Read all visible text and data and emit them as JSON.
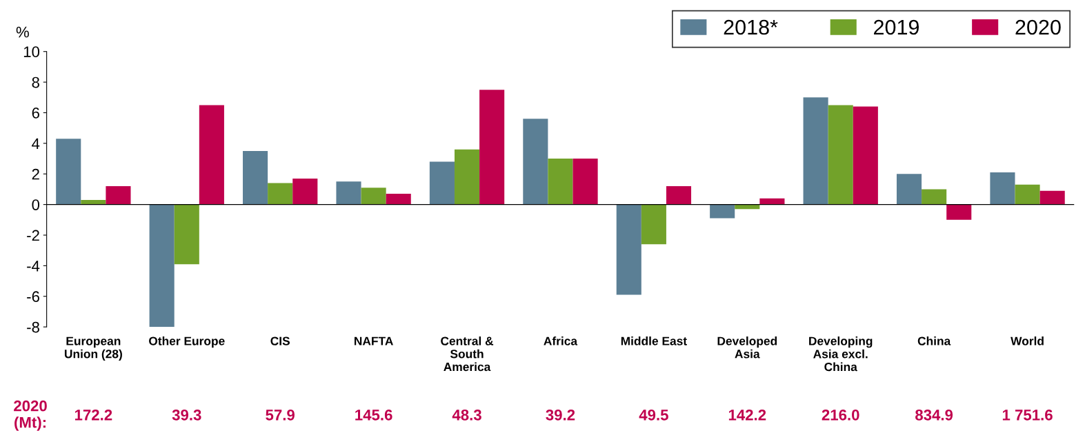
{
  "chart_data": {
    "type": "bar",
    "ylabel": "%",
    "categories": [
      "European\nUnion (28)",
      "Other Europe",
      "CIS",
      "NAFTA",
      "Central &\nSouth\nAmerica",
      "Africa",
      "Middle East",
      "Developed\nAsia",
      "Developing\nAsia excl.\nChina",
      "China",
      "World"
    ],
    "series": [
      {
        "name": "2018*",
        "color": "#5b7f95",
        "values": [
          4.3,
          -8.0,
          3.5,
          1.5,
          2.8,
          5.6,
          -5.9,
          -0.9,
          7.0,
          2.0,
          2.1
        ]
      },
      {
        "name": "2019",
        "color": "#72a22a",
        "values": [
          0.3,
          -3.9,
          1.4,
          1.1,
          3.6,
          3.0,
          -2.6,
          -0.3,
          6.5,
          1.0,
          1.3
        ]
      },
      {
        "name": "2020",
        "color": "#c0004d",
        "values": [
          1.2,
          6.5,
          1.7,
          0.7,
          7.5,
          3.0,
          1.2,
          0.4,
          6.4,
          -1.0,
          0.9
        ]
      }
    ],
    "ylim": [
      -8,
      10
    ],
    "yticks": [
      -8,
      -6,
      -4,
      -2,
      0,
      2,
      4,
      6,
      8,
      10
    ],
    "legend": "top right",
    "annotations": [
      "2020\n(Mt):",
      "172.2",
      "39.3",
      "57.9",
      "145.6",
      "48.3",
      "39.2",
      "49.5",
      "142.2",
      "216.0",
      "834.9",
      "1 751.6"
    ]
  }
}
